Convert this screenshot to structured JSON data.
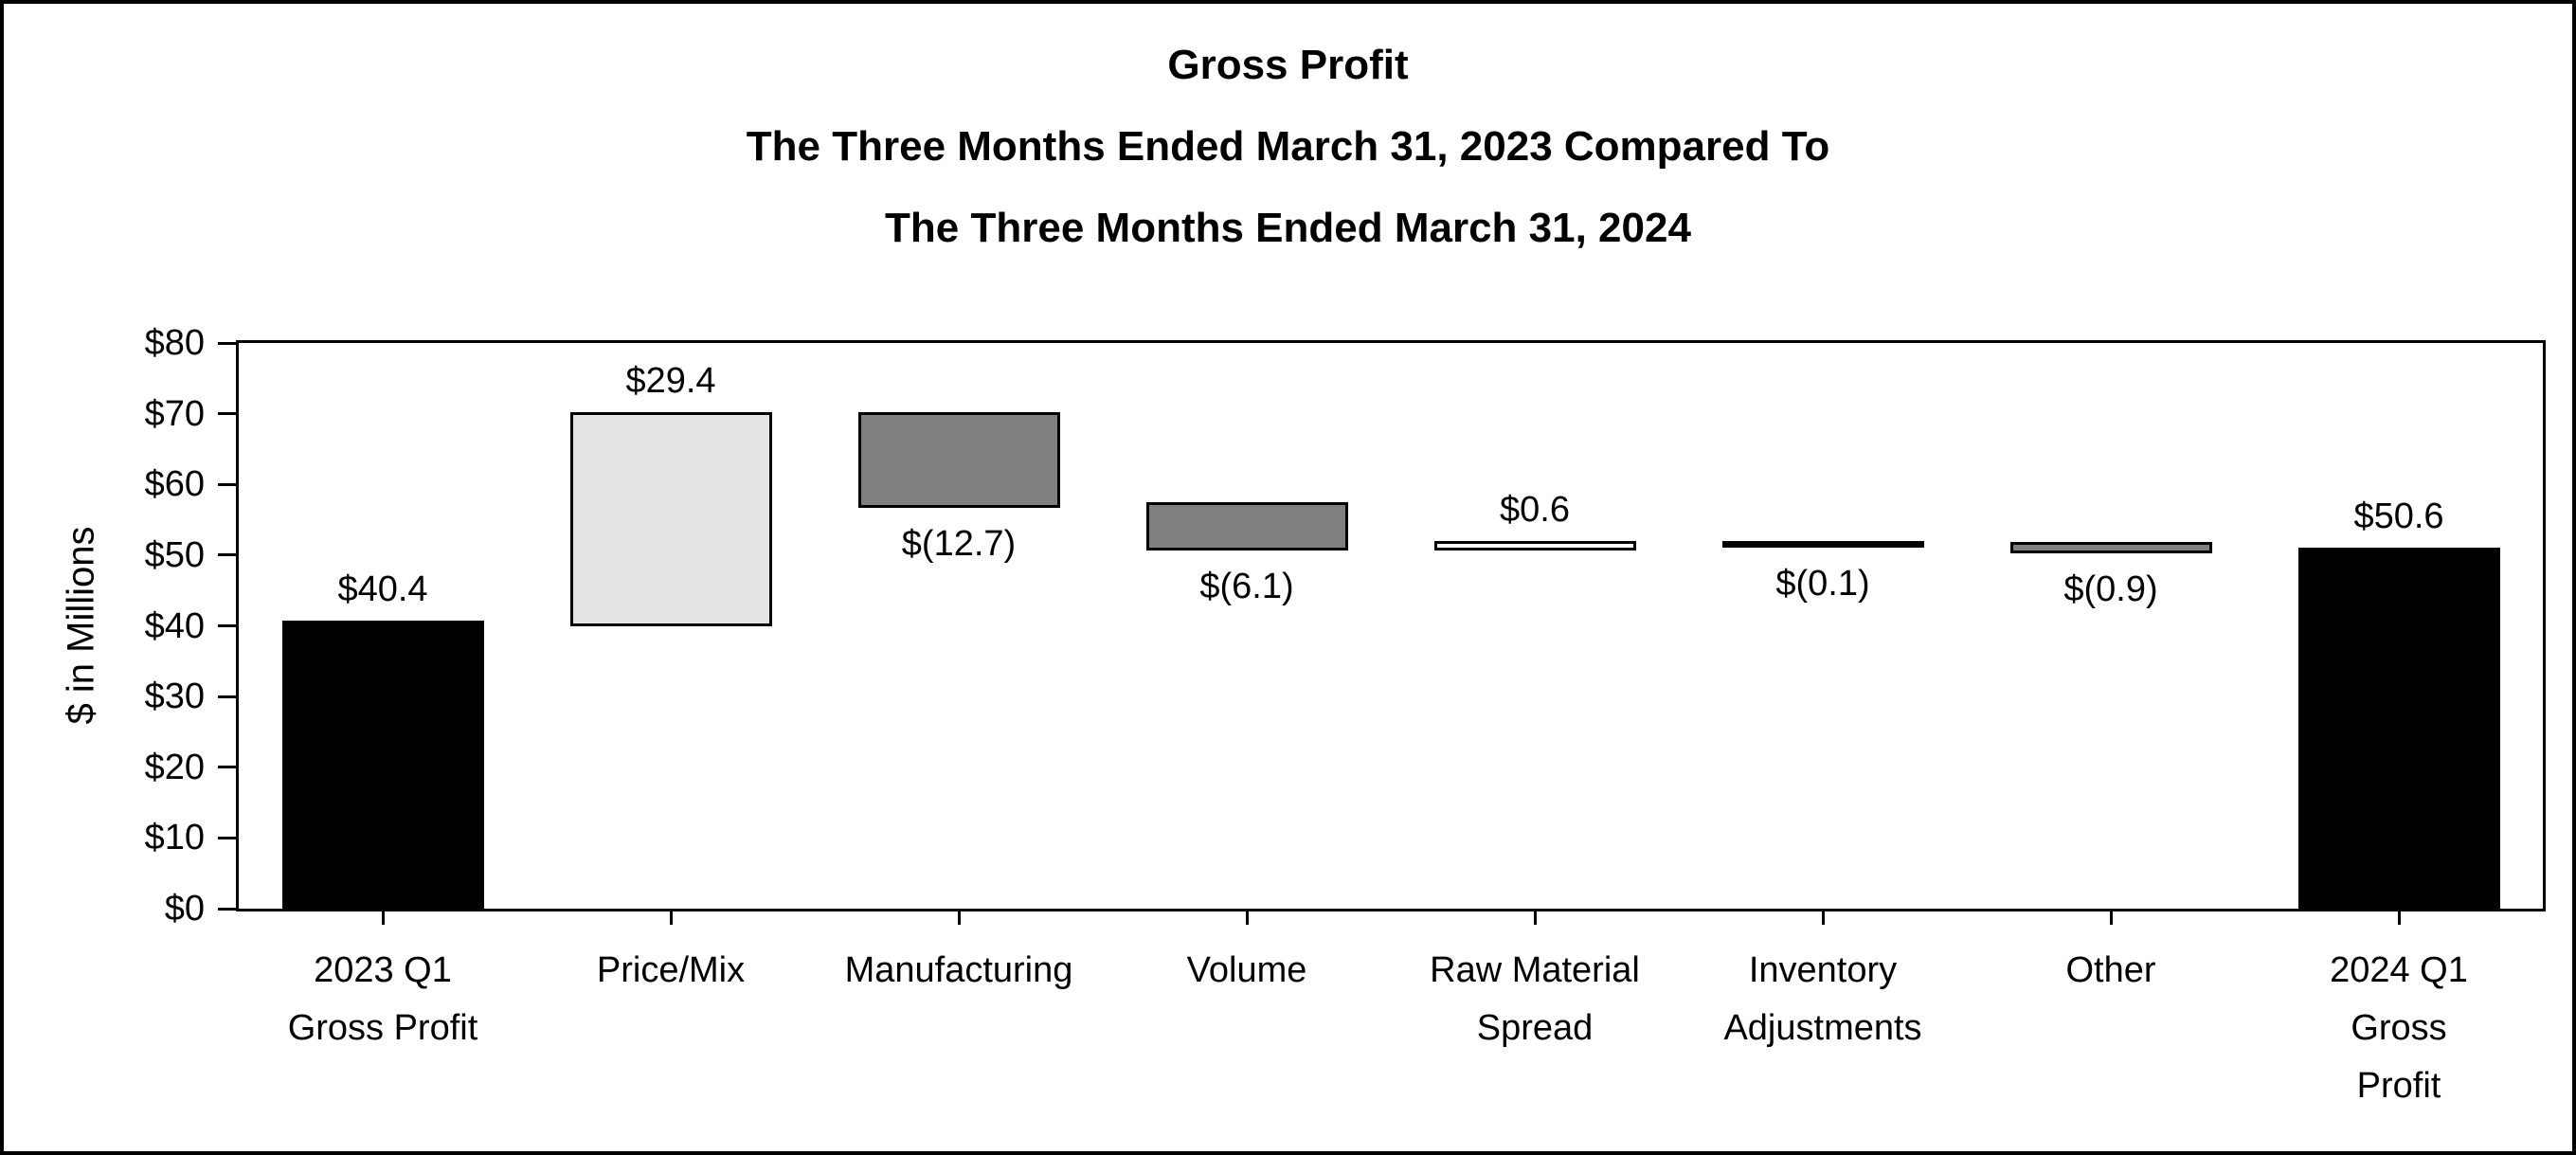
{
  "chart_data": {
    "type": "bar",
    "subtype": "waterfall",
    "title_lines": [
      "Gross Profit",
      "The Three Months Ended March 31, 2023 Compared To",
      "The Three Months Ended March 31, 2024"
    ],
    "ylabel": "$ in Millions",
    "ylim": [
      0,
      80
    ],
    "ytick_step": 10,
    "ytick_labels": [
      "$0",
      "$10",
      "$20",
      "$30",
      "$40",
      "$50",
      "$60",
      "$70",
      "$80"
    ],
    "grid": false,
    "legend": false,
    "axis_color": "#000000",
    "background_color": "#ffffff",
    "categories": [
      {
        "name": "2023-q1-gross-profit",
        "label_lines": [
          "2023 Q1",
          "Gross Profit"
        ],
        "value": 40.4,
        "value_label": "$40.4",
        "base": 0,
        "top": 40.4,
        "value_label_position": "above",
        "fill": "#000000"
      },
      {
        "name": "price-mix",
        "label_lines": [
          "Price/Mix"
        ],
        "value": 29.4,
        "value_label": "$29.4",
        "base": 40.4,
        "top": 69.8,
        "value_label_position": "above",
        "fill": "#e4e4e4"
      },
      {
        "name": "manufacturing",
        "label_lines": [
          "Manufacturing"
        ],
        "value": -12.7,
        "value_label": "$(12.7)",
        "base": 57.1,
        "top": 69.8,
        "value_label_position": "below",
        "fill": "#7f7f7f"
      },
      {
        "name": "volume",
        "label_lines": [
          "Volume"
        ],
        "value": -6.1,
        "value_label": "$(6.1)",
        "base": 51.0,
        "top": 57.1,
        "value_label_position": "below",
        "fill": "#7f7f7f"
      },
      {
        "name": "raw-material-spread",
        "label_lines": [
          "Raw Material",
          "Spread"
        ],
        "value": 0.6,
        "value_label": "$0.6",
        "base": 51.0,
        "top": 51.6,
        "value_label_position": "above",
        "fill": "#ffffff"
      },
      {
        "name": "inventory-adjustments",
        "label_lines": [
          "Inventory",
          "Adjustments"
        ],
        "value": -0.1,
        "value_label": "$(0.1)",
        "base": 51.5,
        "top": 51.6,
        "value_label_position": "below",
        "fill": "#000000"
      },
      {
        "name": "other",
        "label_lines": [
          "Other"
        ],
        "value": -0.9,
        "value_label": "$(0.9)",
        "base": 50.6,
        "top": 51.5,
        "value_label_position": "below",
        "fill": "#7f7f7f"
      },
      {
        "name": "2024-q1-gross-profit",
        "label_lines": [
          "2024 Q1",
          "Gross",
          "Profit"
        ],
        "value": 50.6,
        "value_label": "$50.6",
        "base": 0,
        "top": 50.6,
        "value_label_position": "above",
        "fill": "#000000"
      }
    ]
  }
}
